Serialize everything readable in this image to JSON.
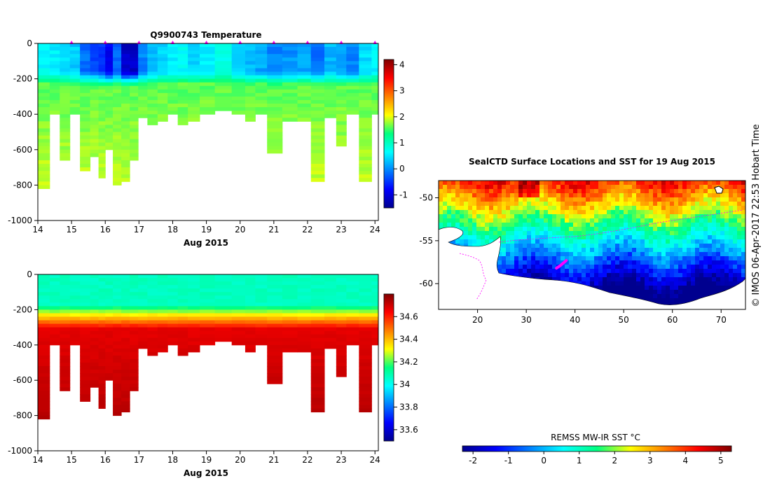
{
  "credit": "© IMOS 06-Apr-2017 22:53 Hobart Time",
  "chart_data": [
    {
      "id": "temperature",
      "type": "heatmap",
      "title": "Q9900743  Temperature",
      "xlabel": "Aug 2015",
      "ylabel": "",
      "xlim": [
        14,
        24.1
      ],
      "ylim": [
        -1000,
        0
      ],
      "x_ticks": [
        "14",
        "15",
        "16",
        "17",
        "18",
        "19",
        "20",
        "21",
        "22",
        "23",
        "24"
      ],
      "y_ticks": [
        "0",
        "-200",
        "-400",
        "-600",
        "-800",
        "-1000"
      ],
      "profile_markers_x": [
        15,
        16,
        17,
        18,
        19,
        20,
        21,
        22,
        23,
        24
      ],
      "colorbar": {
        "range": [
          -1.5,
          4.2
        ],
        "ticks": [
          "-1",
          "0",
          "1",
          "2",
          "3",
          "4"
        ]
      },
      "profiles": {
        "x": [
          14.2,
          14.5,
          14.8,
          15.1,
          15.4,
          15.7,
          15.9,
          16.1,
          16.35,
          16.6,
          16.85,
          17.1,
          17.4,
          17.7,
          18.0,
          18.3,
          18.6,
          19.0,
          19.5,
          20.0,
          20.3,
          20.6,
          21.0,
          21.5,
          21.9,
          22.3,
          22.7,
          23.0,
          23.3,
          23.75,
          24.05
        ],
        "max_depth": [
          820,
          390,
          650,
          400,
          710,
          630,
          760,
          590,
          800,
          780,
          660,
          420,
          460,
          440,
          400,
          450,
          440,
          400,
          370,
          400,
          430,
          400,
          610,
          440,
          430,
          780,
          410,
          580,
          400,
          770,
          400
        ],
        "surface_temp": [
          0.5,
          0.4,
          0.3,
          0.2,
          -0.3,
          -0.5,
          -0.7,
          -1.0,
          -0.4,
          -1.3,
          -1.3,
          -0.2,
          0.1,
          0.3,
          0.4,
          0.5,
          0.3,
          0.4,
          0.6,
          0.3,
          0.1,
          0.0,
          -0.2,
          -0.1,
          0.0,
          -0.3,
          0.1,
          0.0,
          -0.2,
          0.3,
          0.4
        ],
        "deep_temp": 1.8
      }
    },
    {
      "id": "salinity",
      "type": "heatmap",
      "title": "",
      "xlabel": "Aug 2015",
      "ylabel": "",
      "xlim": [
        14,
        24.1
      ],
      "ylim": [
        -1000,
        0
      ],
      "x_ticks": [
        "14",
        "15",
        "16",
        "17",
        "18",
        "19",
        "20",
        "21",
        "22",
        "23",
        "24"
      ],
      "y_ticks": [
        "0",
        "-200",
        "-400",
        "-600",
        "-800",
        "-1000"
      ],
      "colorbar": {
        "range": [
          33.5,
          34.8
        ],
        "ticks": [
          "33.6",
          "33.8",
          "34",
          "34.2",
          "34.4",
          "34.6"
        ]
      },
      "profiles": {
        "x": [
          14.2,
          14.5,
          14.8,
          15.1,
          15.4,
          15.7,
          15.9,
          16.1,
          16.35,
          16.6,
          16.85,
          17.1,
          17.4,
          17.7,
          18.0,
          18.3,
          18.6,
          19.0,
          19.5,
          20.0,
          20.3,
          20.6,
          21.0,
          21.5,
          21.9,
          22.3,
          22.7,
          23.0,
          23.3,
          23.75,
          24.05
        ],
        "max_depth": [
          820,
          390,
          650,
          400,
          710,
          630,
          760,
          590,
          800,
          780,
          660,
          420,
          460,
          440,
          400,
          450,
          440,
          400,
          370,
          400,
          430,
          400,
          610,
          440,
          430,
          780,
          410,
          580,
          400,
          770,
          400
        ],
        "surface_sal": 34.05,
        "deep_sal": 34.72
      }
    },
    {
      "id": "sst-map",
      "type": "heatmap",
      "title": "SealCTD Surface Locations and SST for 19 Aug 2015",
      "xlabel": "",
      "ylabel": "",
      "xlim": [
        12,
        75
      ],
      "ylim": [
        -63,
        -48
      ],
      "x_ticks": [
        "20",
        "30",
        "40",
        "50",
        "60",
        "70"
      ],
      "y_ticks": [
        "-50",
        "-55",
        "-60"
      ],
      "track": [
        [
          36.2,
          -58.2
        ],
        [
          37.0,
          -57.9
        ],
        [
          38.2,
          -57.3
        ]
      ],
      "colorbar": {
        "label": "REMSS MW-IR SST °C",
        "range": [
          -2.3,
          5.3
        ],
        "ticks": [
          "-2",
          "-1",
          "0",
          "1",
          "2",
          "3",
          "4",
          "5"
        ]
      }
    }
  ]
}
